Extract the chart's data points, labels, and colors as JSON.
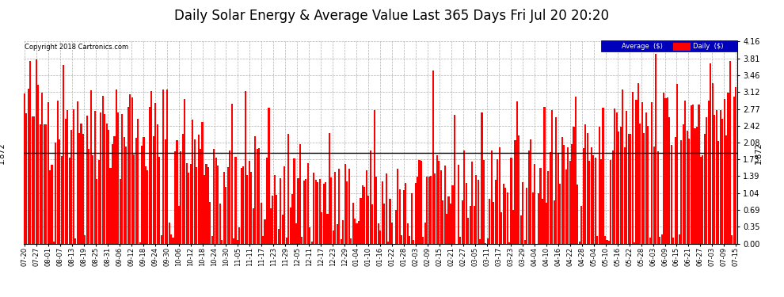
{
  "title": "Daily Solar Energy & Average Value Last 365 Days Fri Jul 20 20:20",
  "copyright": "Copyright 2018 Cartronics.com",
  "ylabel_right_values": [
    0.0,
    0.35,
    0.69,
    1.04,
    1.39,
    1.73,
    2.08,
    2.42,
    2.77,
    3.12,
    3.46,
    3.81,
    4.16
  ],
  "ymax": 4.16,
  "ymin": 0.0,
  "average_value": 1.872,
  "average_color": "#000000",
  "bar_color": "#ff0000",
  "background_color": "#ffffff",
  "plot_bg_color": "#ffffff",
  "grid_color": "#b0b0b0",
  "title_fontsize": 12,
  "legend_labels": [
    "Average  ($)",
    "Daily  ($)"
  ],
  "legend_bg_color": "#0000bb",
  "legend_text_color": "#ffffff",
  "x_tick_labels": [
    "07-20",
    "07-27",
    "08-01",
    "08-07",
    "08-13",
    "08-19",
    "08-25",
    "08-31",
    "09-06",
    "09-12",
    "09-18",
    "09-24",
    "09-30",
    "10-06",
    "10-12",
    "10-18",
    "10-24",
    "10-30",
    "11-05",
    "11-11",
    "11-17",
    "11-23",
    "11-29",
    "12-05",
    "12-11",
    "12-17",
    "12-23",
    "12-29",
    "01-04",
    "01-10",
    "01-16",
    "01-22",
    "01-28",
    "02-03",
    "02-09",
    "02-15",
    "02-21",
    "02-27",
    "03-05",
    "03-11",
    "03-17",
    "03-23",
    "03-29",
    "04-04",
    "04-10",
    "04-16",
    "04-22",
    "04-28",
    "05-04",
    "05-10",
    "05-16",
    "05-22",
    "05-28",
    "06-03",
    "06-09",
    "06-15",
    "06-21",
    "06-27",
    "07-03",
    "07-09",
    "07-15"
  ],
  "n_bars": 365
}
